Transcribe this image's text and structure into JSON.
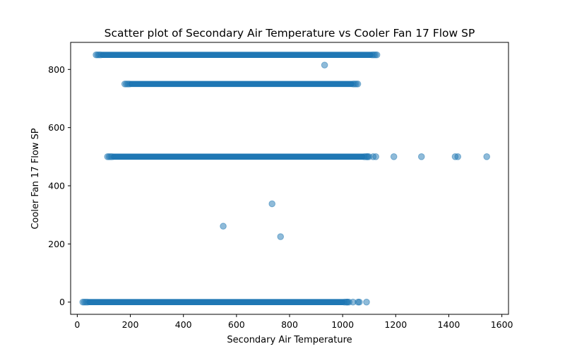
{
  "chart_data": {
    "type": "scatter",
    "title": "Scatter plot of Secondary Air Temperature vs Cooler Fan 17 Flow SP",
    "xlabel": "Secondary Air Temperature",
    "ylabel": "Cooler Fan 17 Flow SP",
    "xlim": [
      -25,
      1625
    ],
    "ylim": [
      -42,
      893
    ],
    "xticks": [
      0,
      200,
      400,
      600,
      800,
      1000,
      1200,
      1400,
      1600
    ],
    "yticks": [
      0,
      200,
      400,
      600,
      800
    ],
    "grid": false,
    "marker_color": "#1f77b4",
    "marker_alpha": 0.5,
    "dense_bands": [
      {
        "y": 850,
        "x_range": [
          95,
          1105
        ],
        "outliers_x": []
      },
      {
        "y": 750,
        "x_range": [
          203,
          1033
        ],
        "outliers_x": []
      },
      {
        "y": 500,
        "x_range": [
          138,
          1075
        ],
        "outliers_x": [
          1093,
          1115,
          1125,
          1193,
          1297,
          1424,
          1434,
          1543
        ]
      },
      {
        "y": 0,
        "x_range": [
          45,
          1000
        ],
        "outliers_x": [
          1017,
          1039,
          1058,
          1063,
          1090
        ]
      }
    ],
    "points": [
      {
        "x": 932,
        "y": 815
      },
      {
        "x": 734,
        "y": 338
      },
      {
        "x": 550,
        "y": 261
      },
      {
        "x": 766,
        "y": 225
      }
    ]
  }
}
